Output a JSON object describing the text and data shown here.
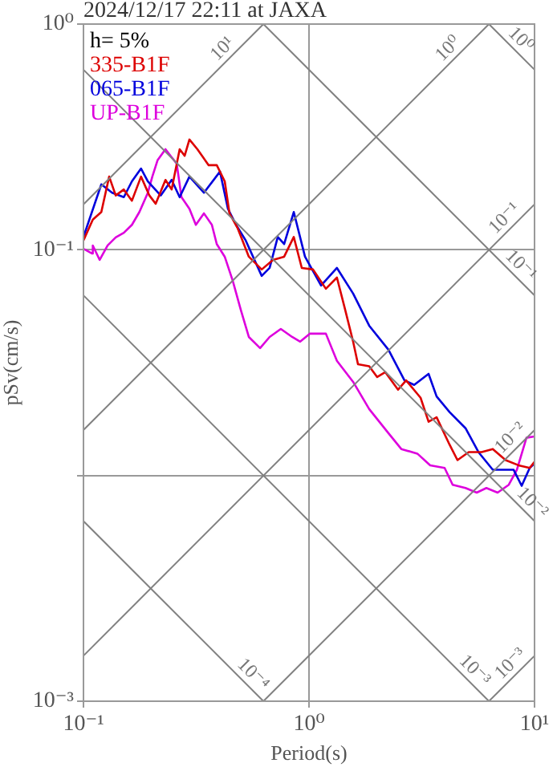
{
  "chart_data": {
    "type": "line",
    "title": "2024/12/17 22:11 at JAXA",
    "xlabel": "Period(s)",
    "ylabel": "pSv(cm/s)",
    "log": "xy",
    "xlim": [
      0.1,
      10
    ],
    "ylim": [
      0.001,
      1
    ],
    "xticks": [
      {
        "value": 0.1,
        "label": "10⁻¹"
      },
      {
        "value": 1,
        "label": "10⁰"
      },
      {
        "value": 10,
        "label": "10¹"
      }
    ],
    "yticks": [
      {
        "value": 0.001,
        "label": "10⁻³"
      },
      {
        "value": 0.01,
        "label": null
      },
      {
        "value": 0.1,
        "label": "10⁻¹"
      },
      {
        "value": 1,
        "label": "10⁰"
      }
    ],
    "grid": true,
    "legend": "top left",
    "marker": "none",
    "line_style": "solid",
    "annotations": [
      "h= 5%",
      {
        "text": "10¹",
        "x": 0.45,
        "y": 0.716
      },
      {
        "text": "10⁰",
        "x": 4.5,
        "y": 0.716
      },
      {
        "text": "10⁰",
        "x": 8,
        "y": 0.785
      },
      {
        "text": "10⁻¹",
        "x": 8,
        "y": 0.127
      },
      {
        "text": "10⁻¹",
        "x": 8,
        "y": 0.0785
      },
      {
        "text": "10⁻²",
        "x": 8.5,
        "y": 0.0135
      },
      {
        "text": "10⁻²",
        "x": 9,
        "y": 0.00698
      },
      {
        "text": "10⁻³",
        "x": 5,
        "y": 0.00126
      },
      {
        "text": "10⁻³",
        "x": 8.5,
        "y": 0.00135
      },
      {
        "text": "10⁻⁴",
        "x": 0.52,
        "y": 0.00121
      }
    ],
    "series": [
      {
        "color": "#808080",
        "x": [
          0.1,
          0.628
        ],
        "values": [
          0.159,
          1
        ]
      },
      {
        "color": "#808080",
        "x": [
          0.1,
          6.28
        ],
        "values": [
          0.0159,
          1
        ]
      },
      {
        "color": "#808080",
        "x": [
          0.1,
          10
        ],
        "values": [
          0.00159,
          0.159
        ]
      },
      {
        "color": "#808080",
        "x": [
          0.628,
          10
        ],
        "values": [
          0.001,
          0.0159
        ]
      },
      {
        "color": "#808080",
        "x": [
          6.28,
          10
        ],
        "values": [
          0.001,
          0.00159
        ]
      },
      {
        "color": "#808080",
        "x": [
          6.28,
          10
        ],
        "values": [
          1,
          0.628
        ]
      },
      {
        "color": "#808080",
        "x": [
          0.628,
          10
        ],
        "values": [
          1,
          0.0628
        ]
      },
      {
        "color": "#808080",
        "x": [
          0.1,
          10
        ],
        "values": [
          0.628,
          0.00628
        ]
      },
      {
        "color": "#808080",
        "x": [
          0.1,
          6.28
        ],
        "values": [
          0.0628,
          0.001
        ]
      },
      {
        "color": "#808080",
        "x": [
          0.1,
          0.628
        ],
        "values": [
          0.00628,
          0.001
        ]
      },
      {
        "name": "335-B1F",
        "color": "#dd0000",
        "x": [
          0.1,
          0.11,
          0.12,
          0.13,
          0.139,
          0.151,
          0.164,
          0.18,
          0.196,
          0.209,
          0.231,
          0.246,
          0.267,
          0.281,
          0.295,
          0.32,
          0.359,
          0.39,
          0.423,
          0.444,
          0.482,
          0.541,
          0.617,
          0.692,
          0.776,
          0.856,
          0.929,
          1.042,
          1.188,
          1.33,
          1.446,
          1.569,
          1.649,
          1.849,
          2.006,
          2.178,
          2.483,
          2.696,
          3.124,
          3.39,
          3.68,
          4.2,
          4.553,
          5.108,
          5.823,
          6.53,
          7.445,
          8.49,
          9.52,
          10
        ],
        "values": [
          0.11,
          0.136,
          0.147,
          0.211,
          0.174,
          0.185,
          0.165,
          0.211,
          0.174,
          0.16,
          0.204,
          0.185,
          0.279,
          0.261,
          0.308,
          0.279,
          0.237,
          0.237,
          0.201,
          0.145,
          0.125,
          0.0932,
          0.0818,
          0.0902,
          0.0932,
          0.114,
          0.0831,
          0.0818,
          0.0672,
          0.0753,
          0.0543,
          0.0392,
          0.0311,
          0.0305,
          0.0273,
          0.0287,
          0.024,
          0.0264,
          0.0221,
          0.0173,
          0.0181,
          0.0137,
          0.0117,
          0.0127,
          0.0127,
          0.0131,
          0.0117,
          0.0111,
          0.0108,
          0.0115
        ]
      },
      {
        "name": "065-B1F",
        "color": "#0000dd",
        "x": [
          0.1,
          0.12,
          0.134,
          0.151,
          0.164,
          0.18,
          0.193,
          0.22,
          0.246,
          0.267,
          0.295,
          0.342,
          0.403,
          0.437,
          0.475,
          0.524,
          0.617,
          0.669,
          0.727,
          0.776,
          0.856,
          0.96,
          1.131,
          1.33,
          1.569,
          1.849,
          2.25,
          2.651,
          2.926,
          3.39,
          3.68,
          4.2,
          4.943,
          5.64,
          6.53,
          7.2,
          8.08,
          8.77,
          9.52,
          10
        ],
        "values": [
          0.114,
          0.195,
          0.179,
          0.171,
          0.201,
          0.229,
          0.201,
          0.174,
          0.204,
          0.171,
          0.211,
          0.179,
          0.222,
          0.152,
          0.129,
          0.11,
          0.0766,
          0.0831,
          0.114,
          0.106,
          0.147,
          0.0932,
          0.0694,
          0.0831,
          0.064,
          0.0461,
          0.0361,
          0.0264,
          0.0252,
          0.0282,
          0.0224,
          0.0191,
          0.0162,
          0.0127,
          0.0106,
          0.0106,
          0.0106,
          0.009,
          0.0108,
          0.0113
        ]
      },
      {
        "name": "UP-B1F",
        "color": "#dd00dd",
        "x": [
          0.1,
          0.109,
          0.11,
          0.118,
          0.128,
          0.139,
          0.151,
          0.164,
          0.177,
          0.193,
          0.202,
          0.213,
          0.231,
          0.246,
          0.259,
          0.272,
          0.295,
          0.315,
          0.342,
          0.371,
          0.39,
          0.423,
          0.459,
          0.498,
          0.541,
          0.607,
          0.669,
          0.75,
          0.842,
          0.914,
          1.008,
          1.188,
          1.33,
          1.569,
          1.849,
          2.25,
          2.566,
          3.023,
          3.446,
          3.993,
          4.335,
          4.943,
          5.543,
          6.116,
          6.86,
          7.69,
          8.35,
          9.21,
          10
        ],
        "values": [
          0.101,
          0.0963,
          0.1045,
          0.0902,
          0.1045,
          0.1135,
          0.119,
          0.129,
          0.147,
          0.179,
          0.211,
          0.249,
          0.279,
          0.257,
          0.241,
          0.171,
          0.152,
          0.129,
          0.145,
          0.129,
          0.106,
          0.0932,
          0.0729,
          0.0543,
          0.0411,
          0.0367,
          0.0411,
          0.0446,
          0.0411,
          0.0392,
          0.0425,
          0.0425,
          0.0322,
          0.026,
          0.0197,
          0.0154,
          0.0131,
          0.0125,
          0.0111,
          0.0108,
          0.0091,
          0.0088,
          0.0084,
          0.0088,
          0.0084,
          0.0091,
          0.0106,
          0.0147,
          0.0149
        ]
      }
    ]
  }
}
